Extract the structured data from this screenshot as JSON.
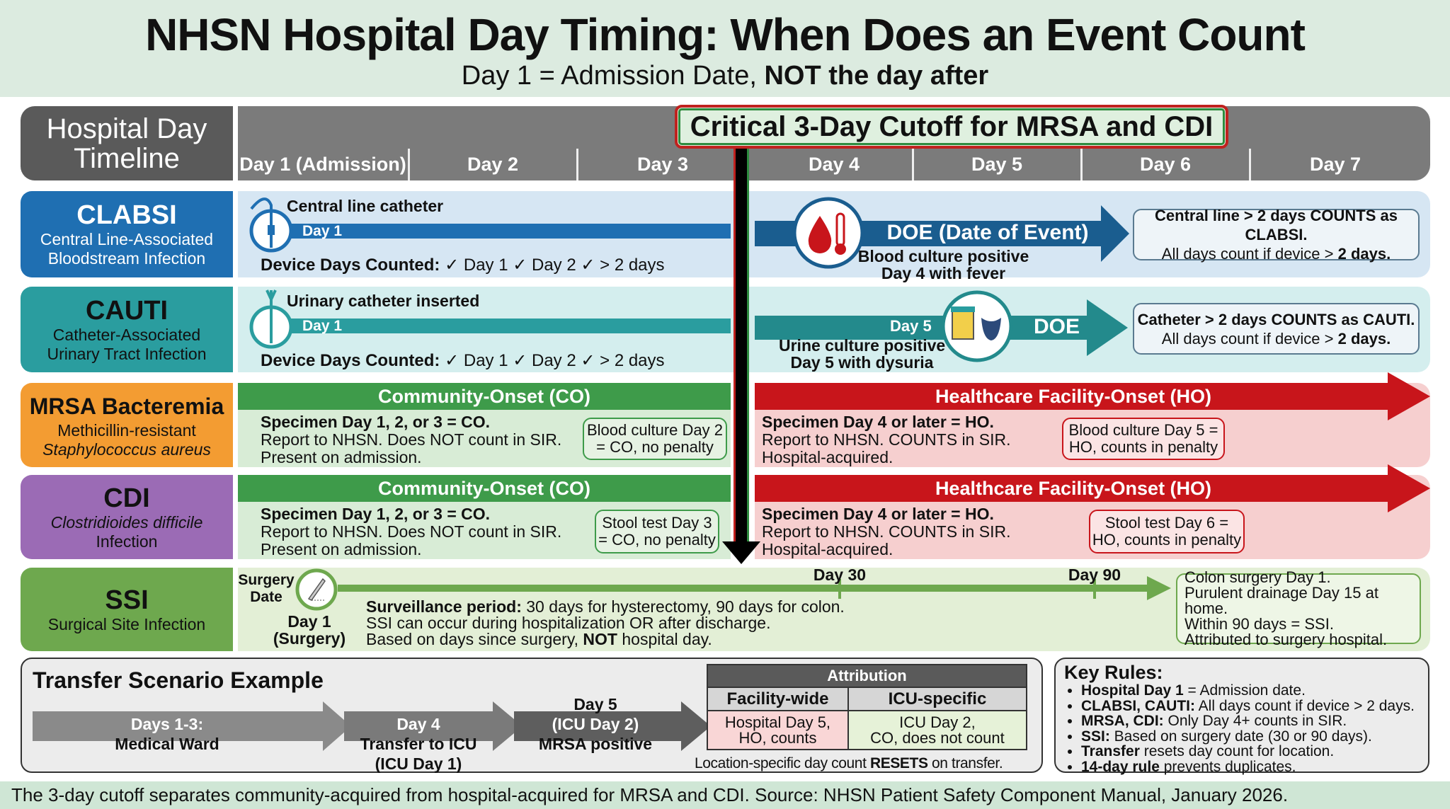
{
  "header": {
    "title": "NHSN Hospital Day Timing: When Does an Event Count",
    "subtitle_plain": "Day 1 = Admission Date, ",
    "subtitle_bold": "NOT the day after"
  },
  "timeline": {
    "label": "Hospital Day Timeline",
    "days": [
      "Day 1 (Admission)",
      "Day 2",
      "Day 3",
      "Day 4",
      "Day 5",
      "Day 6",
      "Day 7"
    ],
    "cutoff_label": "Critical 3-Day Cutoff for MRSA and CDI"
  },
  "colors": {
    "clabsi": "#1f6fb2",
    "cauti": "#2a9d9f",
    "mrsa": "#f39c32",
    "cdi": "#9b6bb5",
    "ssi": "#6ea84e",
    "community_onset": "#3e9b4a",
    "healthcare_onset": "#c8151b"
  },
  "clabsi": {
    "name": "CLABSI",
    "full": "Central Line-Associated Bloodstream Infection",
    "device": "Central line catheter",
    "start": "Day 1",
    "device_days_label": "Device Days Counted:",
    "device_days": "✓ Day 1  ✓ Day 2  ✓ > 2 days",
    "doe": "DOE (Date of Event)",
    "event_line1": "Blood culture positive",
    "event_line2": "Day 4 with fever",
    "rule_bold": "Central line > 2 days COUNTS as CLABSI.",
    "rule_plain": "All days count if device > ",
    "rule_end": "2 days."
  },
  "cauti": {
    "name": "CAUTI",
    "full": "Catheter-Associated Urinary Tract Infection",
    "device": "Urinary catheter inserted",
    "start": "Day 1",
    "device_days_label": "Device Days Counted:",
    "device_days": "✓ Day 1  ✓ Day 2  ✓ > 2 days",
    "event_day": "Day 5",
    "doe": "DOE",
    "event_line1": "Urine culture positive",
    "event_line2": "Day 5 with dysuria",
    "rule_bold": "Catheter > 2 days COUNTS as CAUTI.",
    "rule_plain": "All days count if device > ",
    "rule_end": "2 days."
  },
  "mrsa": {
    "name": "MRSA Bacteremia",
    "full1": "Methicillin-resistant",
    "full2": "Staphylococcus aureus",
    "co_head": "Community-Onset (CO)",
    "ho_head": "Healthcare Facility-Onset (HO)",
    "co_lines": [
      "Specimen Day 1, 2, or 3 = CO.",
      "Report to NHSN. Does NOT count in SIR.",
      "Present on admission."
    ],
    "co_example": [
      "Blood culture Day 2",
      "= CO, no penalty"
    ],
    "ho_lines": [
      "Specimen Day 4 or later = HO.",
      "Report to NHSN. COUNTS in SIR.",
      "Hospital-acquired."
    ],
    "ho_example": [
      "Blood culture Day 5 =",
      "HO, counts in penalty"
    ]
  },
  "cdi": {
    "name": "CDI",
    "full1": "Clostridioides difficile",
    "full2": "Infection",
    "co_head": "Community-Onset (CO)",
    "ho_head": "Healthcare Facility-Onset (HO)",
    "co_lines": [
      "Specimen Day 1, 2, or 3 = CO.",
      "Report to NHSN. Does NOT count in SIR.",
      "Present on admission."
    ],
    "co_example": [
      "Stool test Day 3",
      "= CO, no penalty"
    ],
    "ho_lines": [
      "Specimen Day 4 or later = HO.",
      "Report to NHSN. COUNTS in SIR.",
      "Hospital-acquired."
    ],
    "ho_example": [
      "Stool test Day 6 =",
      "HO, counts in penalty"
    ]
  },
  "ssi": {
    "name": "SSI",
    "full": "Surgical Site Infection",
    "surgery_date": [
      "Surgery",
      "Date"
    ],
    "day1": [
      "Day 1",
      "(Surgery)"
    ],
    "surv_bold": "Surveillance period:",
    "surv_text": " 30 days for hysterectomy, 90 days for colon.",
    "line2": "SSI can occur during hospitalization OR after discharge.",
    "line3_a": "Based on days since surgery, ",
    "line3_b": "NOT",
    "line3_c": " hospital day.",
    "ticks": [
      "Day 30",
      "Day 90"
    ],
    "example": [
      "Colon surgery Day 1.",
      "Purulent drainage Day 15 at home.",
      "Within 90 days = SSI.",
      "Attributed to surgery hospital."
    ]
  },
  "transfer": {
    "title": "Transfer Scenario Example",
    "steps": [
      {
        "top": "Days 1-3:",
        "bottom": "Medical Ward"
      },
      {
        "top": "Day 4",
        "bottom": "Transfer to ICU",
        "bottom2": "(ICU Day 1)"
      },
      {
        "above": "Day 5",
        "top": "(ICU Day 2)",
        "bottom": "MRSA positive"
      }
    ],
    "table": {
      "title": "Attribution",
      "cols": [
        "Facility-wide",
        "ICU-specific"
      ],
      "cells": [
        [
          "Hospital Day 5,",
          "HO, counts"
        ],
        [
          "ICU Day 2,",
          "CO, does not count"
        ]
      ]
    },
    "caption_a": "Location-specific day count ",
    "caption_b": "RESETS",
    "caption_c": " on transfer."
  },
  "key_rules": {
    "title": "Key Rules:",
    "items": [
      {
        "bold": "Hospital Day 1",
        "text": " = Admission date."
      },
      {
        "bold": "CLABSI, CAUTI:",
        "text": " All days count if device > 2 days."
      },
      {
        "bold": "MRSA, CDI:",
        "text": " Only Day 4+ counts in SIR."
      },
      {
        "bold": "SSI:",
        "text": " Based on surgery date (30 or 90 days)."
      },
      {
        "bold": "Transfer",
        "text": " resets day count for location."
      },
      {
        "bold": "14-day rule",
        "text": " prevents duplicates."
      }
    ]
  },
  "footer": "The 3-day cutoff separates community-acquired from hospital-acquired for MRSA and CDI.   Source: NHSN Patient Safety Component Manual, January 2026."
}
